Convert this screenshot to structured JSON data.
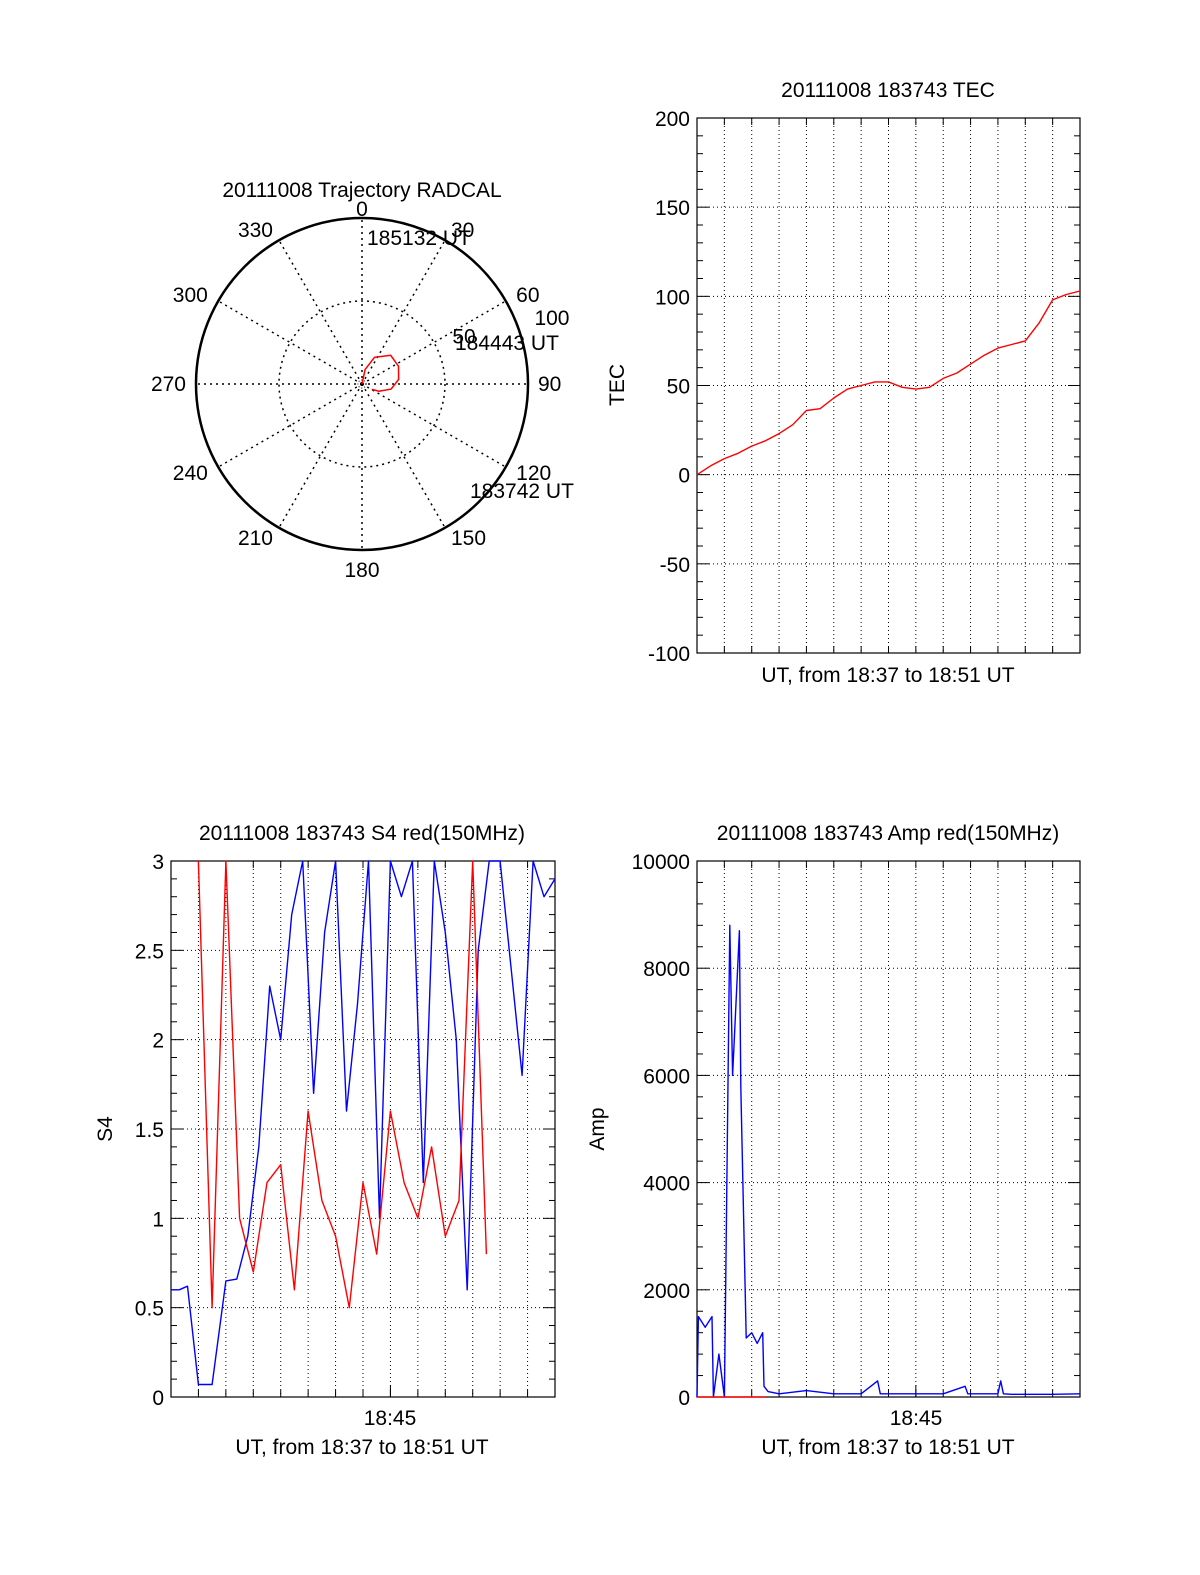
{
  "colors": {
    "red": "#ff0000",
    "blue": "#0000ff",
    "axis": "#000000",
    "grid": "#000000"
  },
  "chart_data": [
    {
      "id": "trajectory",
      "type": "polar",
      "title": "20111008 Trajectory RADCAL",
      "angle_labels": [
        "0",
        "30",
        "60",
        "90",
        "120",
        "150",
        "180",
        "210",
        "240",
        "270",
        "300",
        "330"
      ],
      "ring_labels": [
        "50",
        "100"
      ],
      "elevation_rings": [
        50,
        100
      ],
      "series": [
        {
          "color": "red",
          "points": [
            {
              "az": 0,
              "el": 90
            },
            {
              "az": 12,
              "el": 82
            },
            {
              "az": 25,
              "el": 74
            },
            {
              "az": 45,
              "el": 68
            },
            {
              "az": 64,
              "el": 68
            },
            {
              "az": 83,
              "el": 70
            },
            {
              "az": 100,
              "el": 74
            },
            {
              "az": 113,
              "el": 80
            },
            {
              "az": 119,
              "el": 84
            }
          ]
        }
      ],
      "annotations": [
        "185132 UT",
        "184443 UT",
        "183742 UT"
      ]
    },
    {
      "id": "tec",
      "type": "line",
      "title": "20111008 183743 TEC",
      "xlabel": "UT, from 18:37 to 18:51 UT",
      "ylabel": "TEC",
      "ylim": [
        -100,
        200
      ],
      "yticks": [
        "200",
        "150",
        "100",
        "50",
        "0",
        "-50",
        "-100"
      ],
      "xlim": [
        0,
        14
      ],
      "series": [
        {
          "color": "red",
          "x": [
            0,
            0.5,
            1,
            1.5,
            2,
            2.5,
            3,
            3.5,
            4,
            4.5,
            5,
            5.5,
            6,
            6.5,
            7,
            7.5,
            8,
            8.5,
            9,
            9.5,
            10,
            10.5,
            11,
            11.5,
            12,
            12.5,
            13,
            13.5,
            14
          ],
          "y": [
            0,
            5,
            9,
            12,
            16,
            19,
            23,
            28,
            36,
            37,
            43,
            48,
            50,
            52,
            52,
            49,
            48,
            49,
            54,
            57,
            62,
            67,
            71,
            73,
            75,
            85,
            98,
            101,
            103
          ]
        }
      ]
    },
    {
      "id": "s4",
      "type": "line",
      "title": "20111008 183743 S4 red(150MHz)",
      "xlabel": "UT, from 18:37 to 18:51 UT",
      "ylabel": "S4",
      "ylim": [
        0,
        3
      ],
      "yticks": [
        "3",
        "2.5",
        "2",
        "1.5",
        "1",
        "0.5",
        "0"
      ],
      "xlim": [
        0,
        14
      ],
      "xtick": {
        "x": 8,
        "label": "18:45"
      },
      "series": [
        {
          "color": "blue",
          "x": [
            0,
            0.3,
            0.6,
            1,
            1.5,
            2,
            2.4,
            2.8,
            3.2,
            3.6,
            4,
            4.4,
            4.8,
            5.2,
            5.6,
            6,
            6.4,
            6.8,
            7.2,
            7.6,
            8,
            8.4,
            8.8,
            9.2,
            9.6,
            10,
            10.4,
            10.8,
            11.2,
            11.6,
            12,
            12.4,
            12.8,
            13.2,
            13.6,
            14
          ],
          "y": [
            0.6,
            0.6,
            0.62,
            0.07,
            0.07,
            0.65,
            0.66,
            0.9,
            1.4,
            2.3,
            2.0,
            2.7,
            3.0,
            1.7,
            2.6,
            3.0,
            1.6,
            2.2,
            3.0,
            1.0,
            3.0,
            2.8,
            3.0,
            1.2,
            3.0,
            2.6,
            2.0,
            0.6,
            2.5,
            3.0,
            3.0,
            2.4,
            1.8,
            3.0,
            2.8,
            2.9
          ]
        },
        {
          "color": "red",
          "x": [
            1,
            1.5,
            2,
            2.5,
            3,
            3.5,
            4,
            4.5,
            5,
            5.5,
            6,
            6.5,
            7,
            7.5,
            8,
            8.5,
            9,
            9.5,
            10,
            10.5,
            11,
            11.5
          ],
          "y": [
            3.0,
            0.5,
            3.0,
            1.0,
            0.7,
            1.2,
            1.3,
            0.6,
            1.6,
            1.1,
            0.9,
            0.5,
            1.2,
            0.8,
            1.6,
            1.2,
            1.0,
            1.4,
            0.9,
            1.1,
            3.0,
            0.8
          ]
        }
      ]
    },
    {
      "id": "amp",
      "type": "line",
      "title": "20111008 183743 Amp red(150MHz)",
      "xlabel": "UT, from 18:37 to 18:51 UT",
      "ylabel": "Amp",
      "ylim": [
        0,
        10000
      ],
      "yticks": [
        "10000",
        "8000",
        "6000",
        "4000",
        "2000",
        "0"
      ],
      "xlim": [
        0,
        14
      ],
      "xtick": {
        "x": 8,
        "label": "18:45"
      },
      "series": [
        {
          "color": "blue",
          "x": [
            0,
            0.05,
            0.3,
            0.55,
            0.6,
            0.8,
            1.0,
            1.2,
            1.3,
            1.55,
            1.6,
            1.8,
            2.0,
            2.2,
            2.4,
            2.45,
            2.6,
            3,
            4,
            5,
            6,
            6.6,
            6.7,
            7,
            8,
            9,
            9.8,
            9.9,
            10,
            11,
            11.1,
            11.2,
            11.5,
            12,
            13,
            14
          ],
          "y": [
            0,
            1500,
            1300,
            1500,
            0,
            800,
            0,
            8800,
            6000,
            8700,
            5800,
            1100,
            1200,
            1000,
            1200,
            200,
            100,
            60,
            120,
            60,
            60,
            300,
            60,
            60,
            60,
            60,
            200,
            60,
            60,
            60,
            300,
            60,
            50,
            50,
            50,
            60
          ]
        },
        {
          "color": "red",
          "x": [
            0,
            0.5,
            1,
            1.5,
            2,
            2.5
          ],
          "y": [
            0,
            0,
            0,
            0,
            0,
            0
          ]
        }
      ]
    }
  ]
}
